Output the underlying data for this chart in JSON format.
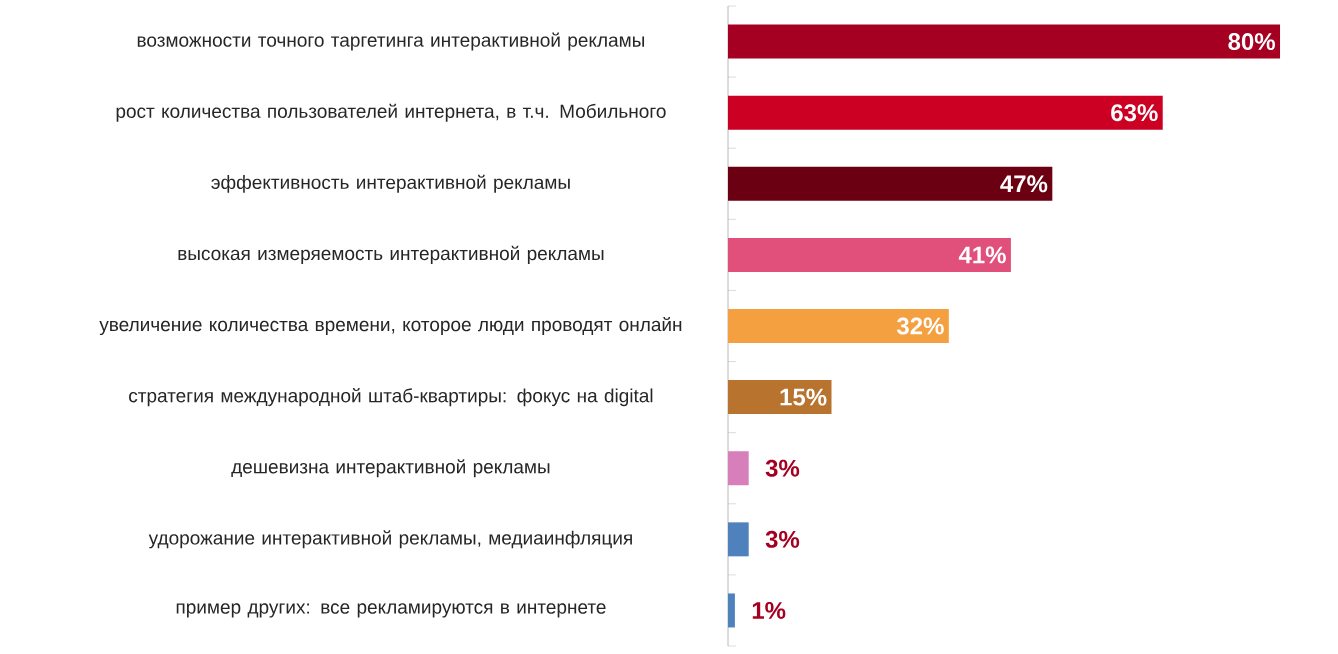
{
  "chart_data": {
    "type": "bar",
    "orientation": "horizontal",
    "categories": [
      "возможности точного таргетинга интерактивной рекламы",
      "рост количества пользователей интернета, в т.ч. Мобильного",
      "эффективность интерактивной рекламы",
      "высокая измеряемость интерактивной рекламы",
      "увеличение количества времени, которое люди проводят онлайн",
      "стратегия международной штаб-квартиры: фокус на digital",
      "дешевизна интерактивной рекламы",
      "удорожание интерактивной рекламы, медиаинфляция",
      "пример других: все рекламируются в интернете"
    ],
    "values": [
      80,
      63,
      47,
      41,
      32,
      15,
      3,
      3,
      1
    ],
    "colors": [
      "#a50021",
      "#cc0022",
      "#6b0012",
      "#e0507a",
      "#f4a040",
      "#b8732f",
      "#d77fba",
      "#4f81bd",
      "#4f81bd"
    ],
    "value_labels": [
      "80%",
      "63%",
      "47%",
      "41%",
      "32%",
      "15%",
      "3%",
      "3%",
      "1%"
    ]
  }
}
